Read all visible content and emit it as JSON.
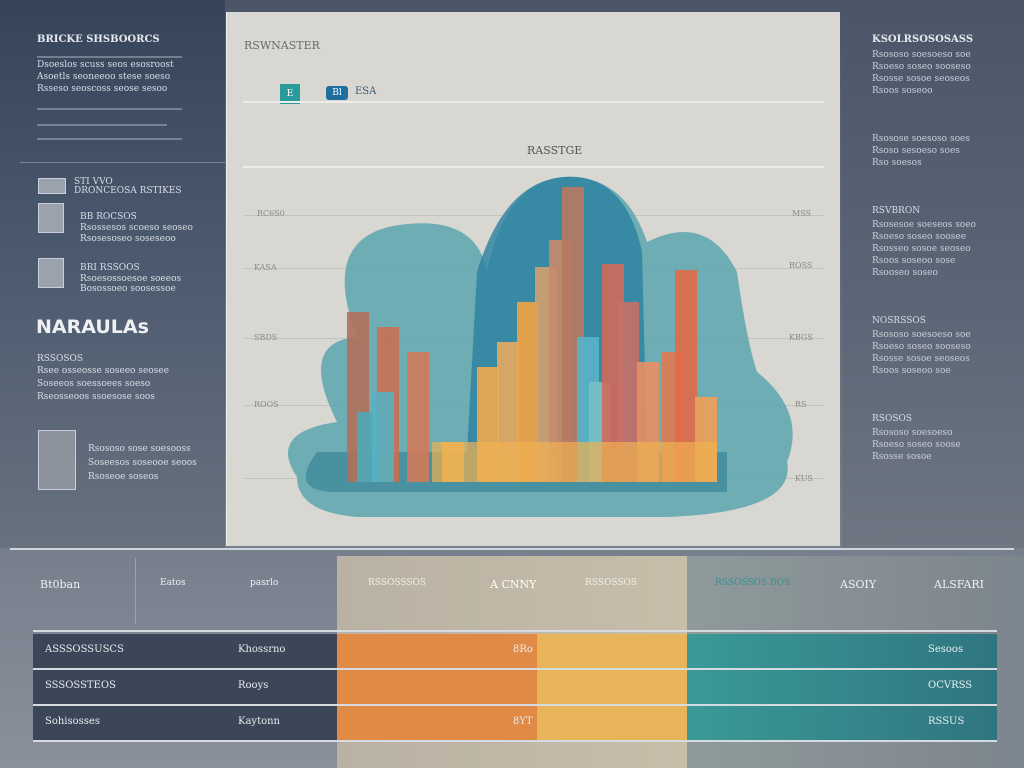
{
  "left": {
    "heading": "BRICKE SHSBOORCS",
    "block_lines": [
      "Dsoeslos scuss seos esosroost",
      "Asoetls seoneeoo stese soeso",
      "Rsseso seoscoss seose sesoo"
    ],
    "item1": {
      "title": "STI VVO",
      "sub": "DRONCEOSA RSTIKES"
    },
    "item2": {
      "title": "BB ROCSOS",
      "lines": [
        "Rsossesos scoeso seoseo",
        "Rsosesoseo soseseoo"
      ]
    },
    "item3": {
      "title": "BRI RSSOOS",
      "lines": [
        "Rsoesossoesoe soeeos",
        "Bosossoeo soosessoe"
      ]
    },
    "big_title": "NARAULAs",
    "block2_title": "RSSOSOS",
    "block2_lines": [
      "Rsee osseosse soseeo seosee",
      "Soseeos soessoees soeso",
      "Rseosseoos ssoesose soos"
    ],
    "item4_lines": [
      "Rsososo sose soesooss",
      "Soseesos soseooe seoos",
      "Rsoseoe soseos"
    ]
  },
  "center": {
    "title": "RSWNASTER",
    "legend": [
      "E",
      "Bl",
      "ESA"
    ],
    "chart_title": "RASSTGE",
    "y_left": [
      "RC6S0",
      "KASA",
      "SBDS",
      "ROOS"
    ],
    "y_right": [
      "MSS",
      "ROSS",
      "KBGS",
      "RS",
      "KUS"
    ]
  },
  "right": {
    "heading": "KSOLRSOSOSASS",
    "sections": [
      {
        "title": "",
        "lines": [
          "Rsososo soesoeso soe",
          "Rsoeso soseo sooseso",
          "Rsosse sosoe seoseos",
          "Rsoos soseoo"
        ]
      },
      {
        "title": "",
        "lines": [
          "Rsosose soesoso soes",
          "Rsoso sesoeso soes",
          "Rso soesos"
        ]
      },
      {
        "title": "RSVBRON",
        "lines": [
          "Rsosesoe soeseos soeo",
          "Rsoeso soseo soosee",
          "Rsosseo sosoe seoseo",
          "Rsoos soseoo sose",
          "Rsooseo soseo"
        ]
      },
      {
        "title": "NOSRSSOS",
        "lines": [
          "Rsososo soesoeso soe",
          "Rsoeso soseo sooseso",
          "Rsosse sosoe seoseos",
          "Rsoos soseoo soe"
        ]
      },
      {
        "title": "RSOSOS",
        "lines": [
          "Rsososo soesoeso",
          "Rsoeso soseo soose",
          "Rsosse sosoe"
        ]
      }
    ]
  },
  "table": {
    "headers": [
      "Bt0ban",
      "Eatos",
      "pasrlo",
      "RSSOSSSOS",
      "A CNNY",
      "RSSOSSOS",
      "RSSOSSOS BOS",
      "ASOIY",
      "ALSFARI"
    ],
    "rows": [
      [
        "ASSSOSSUSCS",
        "Khossrno",
        "8Ro",
        "Sesoos"
      ],
      [
        "SSSOSSTEOS",
        "Rooys",
        "",
        "OCVRSS"
      ],
      [
        "Sohisosses",
        "Kaytonn",
        "8YT",
        "RSSUS"
      ]
    ]
  },
  "colors": {
    "dark": "#3b4658",
    "orange": "#e08a45",
    "yellow": "#e8b45a",
    "teal": "#3a8f8f"
  }
}
